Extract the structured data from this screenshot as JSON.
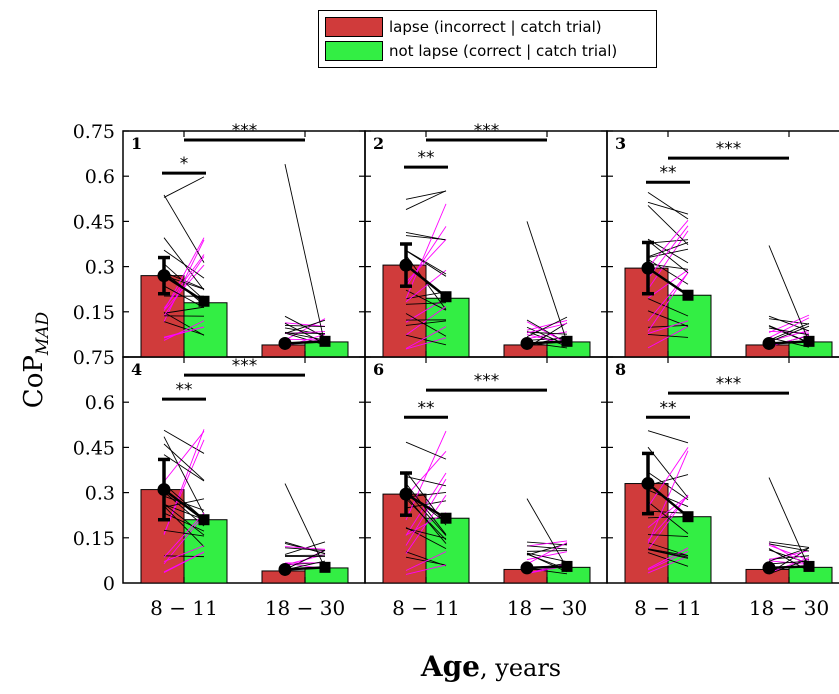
{
  "legend": {
    "items": [
      {
        "label": "lapse (incorrect | catch trial)",
        "color": "#d03b3b"
      },
      {
        "label": "not lapse (correct | catch trial)",
        "color": "#33ee44"
      }
    ]
  },
  "axes": {
    "ylabel_base": "CoP",
    "ylabel_sub": "MAD",
    "xlabel_bold": "Age",
    "xlabel_rest": ", years",
    "y_ticks": [
      {
        "value": 0.75,
        "label": "0.75"
      },
      {
        "value": 0.6,
        "label": "0.6"
      },
      {
        "value": 0.45,
        "label": "0.45"
      },
      {
        "value": 0.3,
        "label": "0.3"
      },
      {
        "value": 0.15,
        "label": "0.15"
      }
    ],
    "y_zero_label": "0",
    "x_tick_labels": [
      "8 − 11",
      "18 − 30"
    ]
  },
  "chart_data": {
    "type": "bar",
    "ylim": [
      0,
      0.75
    ],
    "categories": [
      "8 − 11",
      "18 − 30"
    ],
    "series_colors": {
      "lapse": "#d03b3b",
      "not_lapse": "#33ee44",
      "lines_black": "#000000",
      "lines_magenta": "#ff00ff"
    },
    "panels": [
      {
        "id": "1",
        "lapse": [
          0.27,
          0.04
        ],
        "not_lapse": [
          0.18,
          0.05
        ],
        "mean_lapse": [
          0.27,
          0.045
        ],
        "err_lapse": [
          0.06,
          0.0
        ],
        "mean_not_lapse": [
          0.185,
          0.052
        ],
        "err_not_lapse": [
          0.01,
          0.0
        ],
        "sig_short": "*",
        "sig_short_y": 0.61,
        "sig_long": "***",
        "sig_long_y": 0.72,
        "outlier_line": [
          0.64,
          0.04
        ]
      },
      {
        "id": "2",
        "lapse": [
          0.305,
          0.04
        ],
        "not_lapse": [
          0.195,
          0.05
        ],
        "mean_lapse": [
          0.305,
          0.045
        ],
        "err_lapse": [
          0.07,
          0.0
        ],
        "mean_not_lapse": [
          0.2,
          0.052
        ],
        "err_not_lapse": [
          0.012,
          0.0
        ],
        "sig_short": "**",
        "sig_short_y": 0.63,
        "sig_long": "***",
        "sig_long_y": 0.72,
        "outlier_line": [
          0.45,
          0.05
        ]
      },
      {
        "id": "3",
        "lapse": [
          0.295,
          0.04
        ],
        "not_lapse": [
          0.205,
          0.05
        ],
        "mean_lapse": [
          0.295,
          0.045
        ],
        "err_lapse": [
          0.085,
          0.0
        ],
        "mean_not_lapse": [
          0.205,
          0.052
        ],
        "err_not_lapse": [
          0.012,
          0.0
        ],
        "sig_short": "**",
        "sig_short_y": 0.58,
        "sig_long": "***",
        "sig_long_y": 0.66,
        "outlier_line": [
          0.37,
          0.05
        ]
      },
      {
        "id": "4",
        "lapse": [
          0.31,
          0.04
        ],
        "not_lapse": [
          0.21,
          0.05
        ],
        "mean_lapse": [
          0.31,
          0.045
        ],
        "err_lapse": [
          0.1,
          0.0
        ],
        "mean_not_lapse": [
          0.21,
          0.052
        ],
        "err_not_lapse": [
          0.012,
          0.0
        ],
        "sig_short": "**",
        "sig_short_y": 0.61,
        "sig_long": "***",
        "sig_long_y": 0.69,
        "outlier_line": [
          0.33,
          0.05
        ]
      },
      {
        "id": "6",
        "lapse": [
          0.295,
          0.045
        ],
        "not_lapse": [
          0.215,
          0.052
        ],
        "mean_lapse": [
          0.295,
          0.05
        ],
        "err_lapse": [
          0.07,
          0.0
        ],
        "mean_not_lapse": [
          0.215,
          0.055
        ],
        "err_not_lapse": [
          0.01,
          0.0
        ],
        "sig_short": "**",
        "sig_short_y": 0.55,
        "sig_long": "***",
        "sig_long_y": 0.64,
        "outlier_line": [
          0.28,
          0.05
        ]
      },
      {
        "id": "8",
        "lapse": [
          0.33,
          0.045
        ],
        "not_lapse": [
          0.22,
          0.052
        ],
        "mean_lapse": [
          0.33,
          0.05
        ],
        "err_lapse": [
          0.1,
          0.0
        ],
        "mean_not_lapse": [
          0.22,
          0.055
        ],
        "err_not_lapse": [
          0.012,
          0.0
        ],
        "sig_short": "**",
        "sig_short_y": 0.55,
        "sig_long": "***",
        "sig_long_y": 0.63,
        "outlier_line": [
          0.35,
          0.05
        ]
      }
    ]
  }
}
